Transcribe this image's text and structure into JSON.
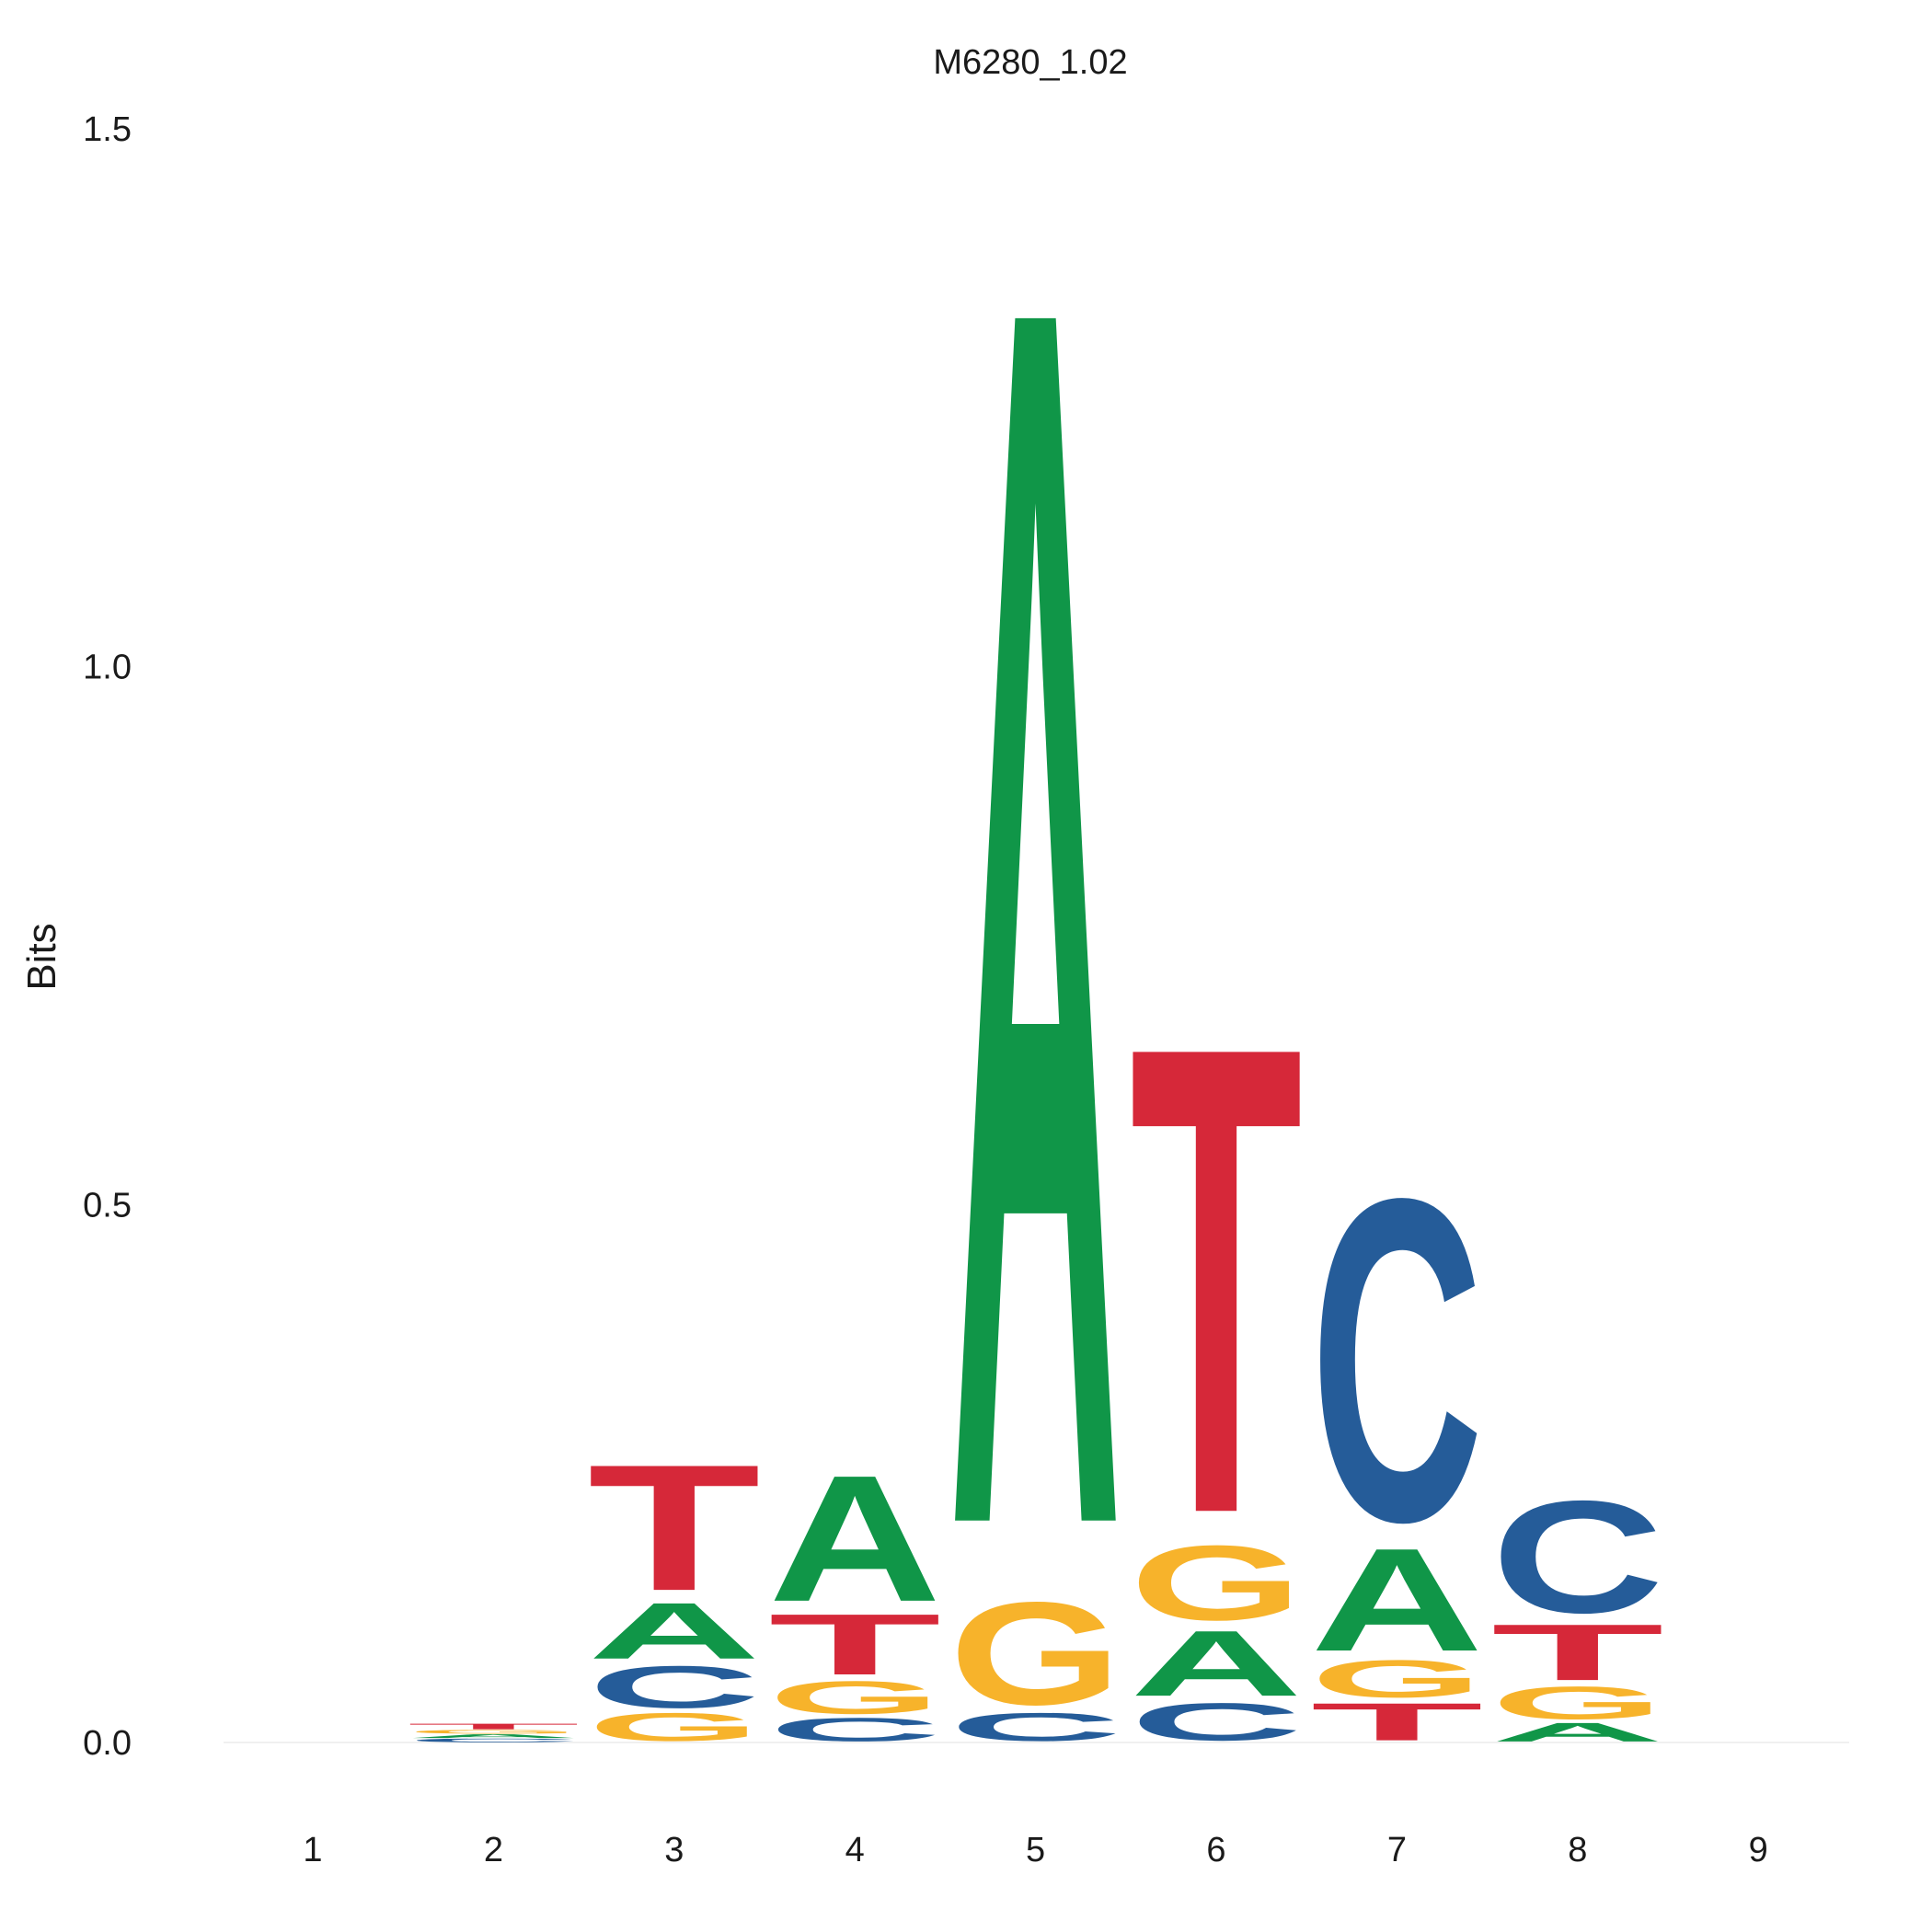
{
  "chart_data": {
    "type": "sequence-logo",
    "title": "M6280_1.02",
    "xlabel": "",
    "ylabel": "Bits",
    "ylim": [
      0,
      1.5
    ],
    "y_ticks": [
      "0.0",
      "0.5",
      "1.0",
      "1.5"
    ],
    "grid": false,
    "positions": [
      "1",
      "2",
      "3",
      "4",
      "5",
      "6",
      "7",
      "8",
      "9"
    ],
    "colors": {
      "A": "#109648",
      "C": "#255C99",
      "G": "#F7B32B",
      "T": "#D62839"
    },
    "stacks": [
      [],
      [
        {
          "letter": "C",
          "bits": 0.004
        },
        {
          "letter": "A",
          "bits": 0.004
        },
        {
          "letter": "G",
          "bits": 0.004
        },
        {
          "letter": "T",
          "bits": 0.006
        }
      ],
      [
        {
          "letter": "G",
          "bits": 0.03
        },
        {
          "letter": "C",
          "bits": 0.045
        },
        {
          "letter": "A",
          "bits": 0.06
        },
        {
          "letter": "T",
          "bits": 0.135
        }
      ],
      [
        {
          "letter": "C",
          "bits": 0.025
        },
        {
          "letter": "G",
          "bits": 0.035
        },
        {
          "letter": "T",
          "bits": 0.065
        },
        {
          "letter": "A",
          "bits": 0.135
        }
      ],
      [
        {
          "letter": "C",
          "bits": 0.03
        },
        {
          "letter": "G",
          "bits": 0.11
        },
        {
          "letter": "A",
          "bits": 1.31
        }
      ],
      [
        {
          "letter": "C",
          "bits": 0.04
        },
        {
          "letter": "A",
          "bits": 0.07
        },
        {
          "letter": "G",
          "bits": 0.08
        },
        {
          "letter": "T",
          "bits": 0.5
        }
      ],
      [
        {
          "letter": "T",
          "bits": 0.04
        },
        {
          "letter": "G",
          "bits": 0.04
        },
        {
          "letter": "A",
          "bits": 0.11
        },
        {
          "letter": "C",
          "bits": 0.345
        }
      ],
      [
        {
          "letter": "A",
          "bits": 0.02
        },
        {
          "letter": "G",
          "bits": 0.035
        },
        {
          "letter": "T",
          "bits": 0.06
        },
        {
          "letter": "C",
          "bits": 0.12
        }
      ],
      []
    ]
  }
}
